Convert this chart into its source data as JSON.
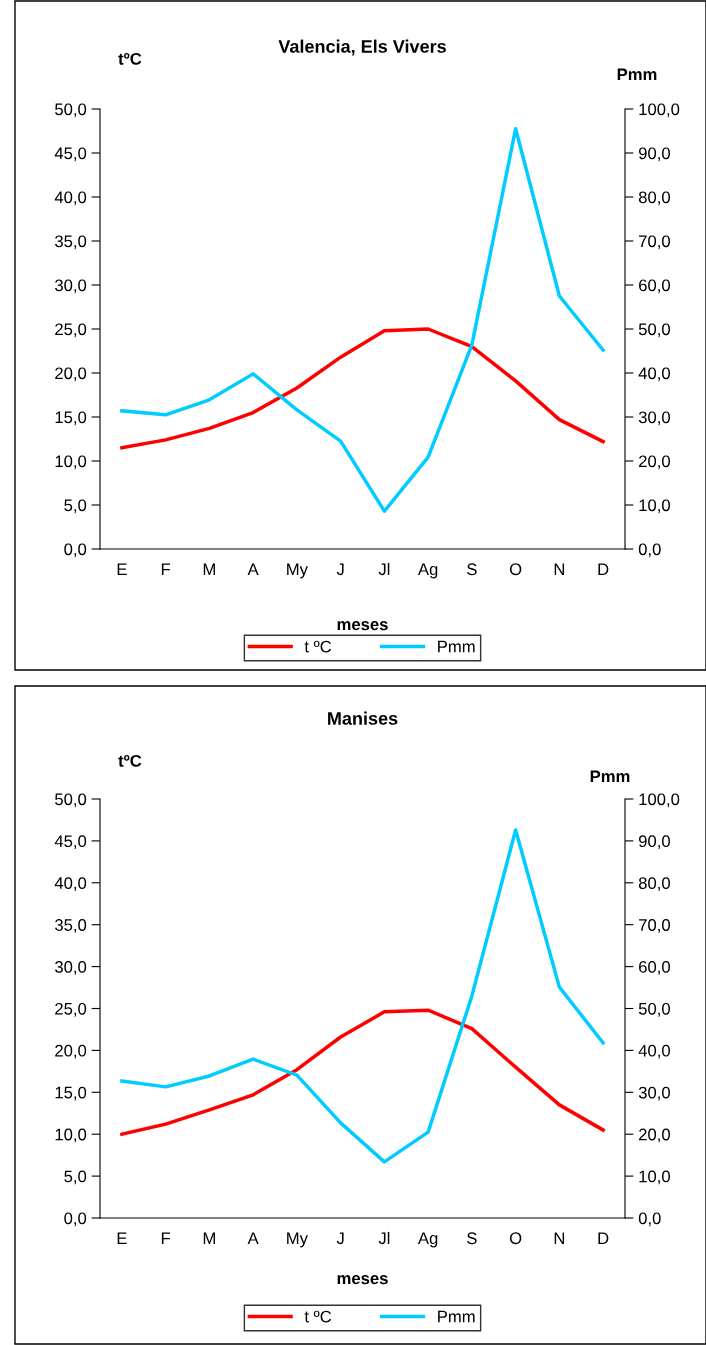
{
  "chart_data": [
    {
      "type": "line",
      "title": "Valencia, Els Vivers",
      "xlabel": "meses",
      "ylabel": "tºC",
      "y2label": "Pmm",
      "categories": [
        "E",
        "F",
        "M",
        "A",
        "My",
        "J",
        "Jl",
        "Ag",
        "S",
        "O",
        "N",
        "D"
      ],
      "series": [
        {
          "name": "t ºC",
          "color": "#ff0000",
          "values": [
            11.5,
            12.4,
            13.7,
            15.5,
            18.3,
            21.8,
            24.8,
            25.0,
            23.0,
            19.1,
            14.7,
            12.2
          ]
        },
        {
          "name": "Pmm",
          "color": "#00ccff",
          "axis": "y2",
          "values": [
            31.4,
            30.5,
            33.9,
            39.8,
            31.6,
            24.5,
            8.6,
            20.9,
            46.4,
            95.5,
            57.5,
            45.2
          ]
        }
      ],
      "ylim": [
        0,
        50
      ],
      "yticks": [
        {
          "value": 0,
          "label": "0,0"
        },
        {
          "value": 5,
          "label": "5,0"
        },
        {
          "value": 10,
          "label": "10,0"
        },
        {
          "value": 15,
          "label": "15,0"
        },
        {
          "value": 20,
          "label": "20,0"
        },
        {
          "value": 25,
          "label": "25,0"
        },
        {
          "value": 30,
          "label": "30,0"
        },
        {
          "value": 35,
          "label": "35,0"
        },
        {
          "value": 40,
          "label": "40,0"
        },
        {
          "value": 45,
          "label": "45,0"
        },
        {
          "value": 50,
          "label": "50,0"
        }
      ],
      "y2lim": [
        0,
        100
      ],
      "y2ticks": [
        {
          "value": 0,
          "label": "0,0"
        },
        {
          "value": 10,
          "label": "10,0"
        },
        {
          "value": 20,
          "label": "20,0"
        },
        {
          "value": 30,
          "label": "30,0"
        },
        {
          "value": 40,
          "label": "40,0"
        },
        {
          "value": 50,
          "label": "50,0"
        },
        {
          "value": 60,
          "label": "60,0"
        },
        {
          "value": 70,
          "label": "70,0"
        },
        {
          "value": 80,
          "label": "80,0"
        },
        {
          "value": 90,
          "label": "90,0"
        },
        {
          "value": 100,
          "label": "100,0"
        }
      ],
      "grid": false,
      "legend": "bottom",
      "marker": "none",
      "line_style": "solid"
    },
    {
      "type": "line",
      "title": "Manises",
      "xlabel": "meses",
      "ylabel": "tºC",
      "y2label": "Pmm",
      "categories": [
        "E",
        "F",
        "M",
        "A",
        "My",
        "J",
        "Jl",
        "Ag",
        "S",
        "O",
        "N",
        "D"
      ],
      "series": [
        {
          "name": "t ºC",
          "color": "#ff0000",
          "values": [
            10.0,
            11.2,
            12.9,
            14.7,
            17.7,
            21.6,
            24.6,
            24.8,
            22.6,
            18.0,
            13.5,
            10.5
          ]
        },
        {
          "name": "Pmm",
          "color": "#00ccff",
          "axis": "y2",
          "values": [
            32.7,
            31.3,
            33.9,
            37.9,
            34.1,
            22.7,
            13.4,
            20.5,
            53.0,
            92.6,
            55.1,
            41.8
          ]
        }
      ],
      "ylim": [
        0,
        50
      ],
      "yticks": [
        {
          "value": 0,
          "label": "0,0"
        },
        {
          "value": 5,
          "label": "5,0"
        },
        {
          "value": 10,
          "label": "10,0"
        },
        {
          "value": 15,
          "label": "15,0"
        },
        {
          "value": 20,
          "label": "20,0"
        },
        {
          "value": 25,
          "label": "25,0"
        },
        {
          "value": 30,
          "label": "30,0"
        },
        {
          "value": 35,
          "label": "35,0"
        },
        {
          "value": 40,
          "label": "40,0"
        },
        {
          "value": 45,
          "label": "45,0"
        },
        {
          "value": 50,
          "label": "50,0"
        }
      ],
      "y2lim": [
        0,
        100
      ],
      "y2ticks": [
        {
          "value": 0,
          "label": "0,0"
        },
        {
          "value": 10,
          "label": "10,0"
        },
        {
          "value": 20,
          "label": "20,0"
        },
        {
          "value": 30,
          "label": "30,0"
        },
        {
          "value": 40,
          "label": "40,0"
        },
        {
          "value": 50,
          "label": "50,0"
        },
        {
          "value": 60,
          "label": "60,0"
        },
        {
          "value": 70,
          "label": "70,0"
        },
        {
          "value": 80,
          "label": "80,0"
        },
        {
          "value": 90,
          "label": "90,0"
        },
        {
          "value": 100,
          "label": "100,0"
        }
      ],
      "grid": false,
      "legend": "bottom",
      "marker": "none",
      "line_style": "solid"
    }
  ]
}
